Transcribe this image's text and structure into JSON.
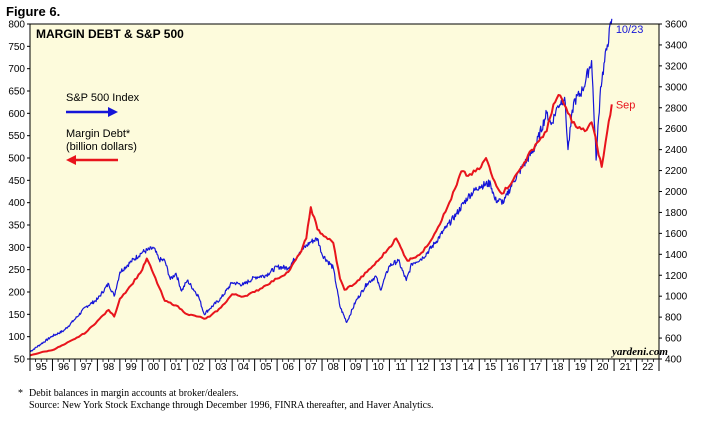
{
  "figure_label": "Figure 6.",
  "footnote": {
    "marker": "*",
    "line1": "Debit balances in margin accounts at broker/dealers.",
    "line2": "Source: New York Stock Exchange through December 1996, FINRA thereafter, and Haver Analytics."
  },
  "colors": {
    "background": "#fdfbdc",
    "sp500": "#1515d8",
    "margin": "#e8141c"
  },
  "chart_data": {
    "type": "line",
    "title": "MARGIN DEBT & S&P 500",
    "watermark": "yardeni.com",
    "x_ticks": [
      "95",
      "96",
      "97",
      "98",
      "99",
      "00",
      "01",
      "02",
      "03",
      "04",
      "05",
      "06",
      "07",
      "08",
      "09",
      "10",
      "11",
      "12",
      "13",
      "14",
      "15",
      "16",
      "17",
      "18",
      "19",
      "20",
      "21",
      "22"
    ],
    "xlim": [
      1995.0,
      2023.0
    ],
    "left_axis": {
      "ylim": [
        50,
        800
      ],
      "ticks": [
        50,
        100,
        150,
        200,
        250,
        300,
        350,
        400,
        450,
        500,
        550,
        600,
        650,
        700,
        750,
        800
      ]
    },
    "right_axis": {
      "ylim": [
        400,
        3600
      ],
      "ticks": [
        400,
        600,
        800,
        1000,
        1200,
        1400,
        1600,
        1800,
        2000,
        2200,
        2400,
        2600,
        2800,
        3000,
        3200,
        3400,
        3600
      ]
    },
    "legend": [
      {
        "label": "S&P 500 Index",
        "arrow": "right"
      },
      {
        "label": "Margin Debt*",
        "label2": "(billion dollars)",
        "arrow": "left"
      }
    ],
    "series": [
      {
        "name": "S&P 500 Index",
        "axis": "right",
        "end_label": "10/23",
        "x": [
          1995.0,
          1995.5,
          1996.0,
          1996.5,
          1997.0,
          1997.5,
          1998.0,
          1998.5,
          1998.75,
          1999.0,
          1999.5,
          2000.0,
          2000.5,
          2000.75,
          2001.0,
          2001.25,
          2001.5,
          2001.75,
          2002.0,
          2002.5,
          2002.75,
          2003.0,
          2003.5,
          2004.0,
          2004.5,
          2005.0,
          2005.5,
          2006.0,
          2006.5,
          2007.0,
          2007.5,
          2007.8,
          2008.0,
          2008.5,
          2008.8,
          2009.1,
          2009.5,
          2010.0,
          2010.4,
          2010.6,
          2011.0,
          2011.4,
          2011.75,
          2012.0,
          2012.5,
          2013.0,
          2013.5,
          2014.0,
          2014.5,
          2015.0,
          2015.5,
          2015.7,
          2016.1,
          2016.5,
          2017.0,
          2017.5,
          2018.0,
          2018.2,
          2018.5,
          2018.8,
          2018.95,
          2019.2,
          2019.6,
          2020.0,
          2020.2,
          2020.4,
          2020.7,
          2020.9
        ],
        "y": [
          470,
          545,
          620,
          670,
          780,
          900,
          970,
          1120,
          1000,
          1230,
          1330,
          1420,
          1460,
          1350,
          1340,
          1160,
          1220,
          1050,
          1150,
          1000,
          830,
          880,
          980,
          1130,
          1110,
          1180,
          1200,
          1280,
          1270,
          1420,
          1520,
          1550,
          1400,
          1270,
          900,
          750,
          950,
          1120,
          1190,
          1060,
          1290,
          1340,
          1150,
          1310,
          1370,
          1500,
          1650,
          1790,
          1950,
          2050,
          2080,
          1920,
          1900,
          2090,
          2260,
          2430,
          2750,
          2640,
          2820,
          2900,
          2400,
          2850,
          2970,
          3250,
          2300,
          3000,
          3400,
          3650
        ]
      },
      {
        "name": "Margin Debt*",
        "axis": "left",
        "end_label": "Sep",
        "x": [
          1995.0,
          1995.5,
          1996.0,
          1996.5,
          1997.0,
          1997.5,
          1998.0,
          1998.5,
          1998.75,
          1999.0,
          1999.5,
          2000.0,
          2000.2,
          2000.5,
          2001.0,
          2001.5,
          2002.0,
          2002.5,
          2002.75,
          2003.0,
          2003.5,
          2004.0,
          2004.5,
          2005.0,
          2005.5,
          2006.0,
          2006.5,
          2007.0,
          2007.3,
          2007.5,
          2007.8,
          2008.0,
          2008.5,
          2008.8,
          2009.0,
          2009.5,
          2010.0,
          2010.5,
          2011.0,
          2011.3,
          2011.5,
          2011.8,
          2012.0,
          2012.5,
          2013.0,
          2013.5,
          2014.0,
          2014.2,
          2014.5,
          2015.0,
          2015.3,
          2015.6,
          2016.0,
          2016.5,
          2017.0,
          2017.5,
          2018.0,
          2018.3,
          2018.6,
          2018.95,
          2019.3,
          2019.7,
          2020.0,
          2020.25,
          2020.45,
          2020.7,
          2020.9
        ],
        "y": [
          58,
          65,
          70,
          82,
          95,
          110,
          135,
          160,
          145,
          185,
          215,
          250,
          275,
          240,
          180,
          170,
          150,
          145,
          140,
          145,
          165,
          195,
          190,
          200,
          215,
          230,
          245,
          285,
          320,
          390,
          340,
          330,
          310,
          230,
          205,
          220,
          245,
          270,
          300,
          320,
          300,
          270,
          275,
          290,
          330,
          380,
          440,
          470,
          460,
          475,
          500,
          455,
          420,
          450,
          490,
          530,
          560,
          620,
          640,
          600,
          570,
          560,
          580,
          525,
          480,
          560,
          620
        ]
      }
    ]
  }
}
